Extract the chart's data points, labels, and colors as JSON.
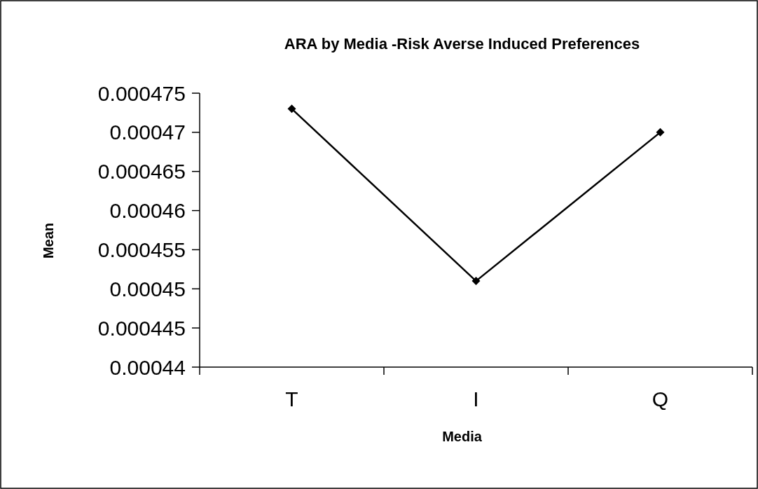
{
  "chart_data": {
    "type": "line",
    "title": "ARA by Media -Risk Averse Induced Preferences",
    "xlabel": "Media",
    "ylabel": "Mean",
    "categories": [
      "T",
      "I",
      "Q"
    ],
    "series": [
      {
        "color": "#000000",
        "values": [
          0.000473,
          0.000451,
          0.00047
        ]
      }
    ],
    "ylim": [
      0.00044,
      0.000475
    ],
    "yticks": [
      0.00044,
      0.000445,
      0.00045,
      0.000455,
      0.00046,
      0.000465,
      0.00047,
      0.000475
    ],
    "grid": false,
    "marker": "diamond",
    "line_style": "solid"
  }
}
